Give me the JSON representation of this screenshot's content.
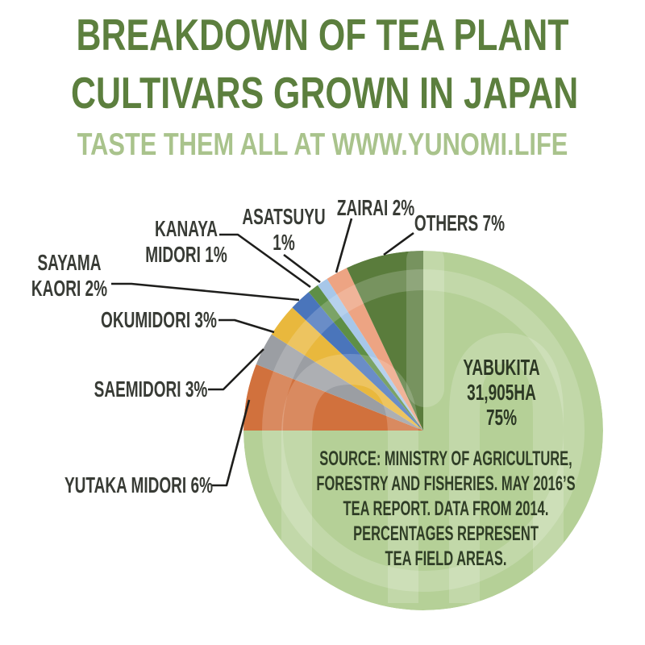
{
  "header": {
    "title_line1": "BREAKDOWN OF TEA PLANT",
    "title_line2": "CULTIVARS GROWN IN JAPAN",
    "subtitle": "TASTE THEM ALL AT WWW.YUNOMI.LIFE",
    "title_color": "#5c7f3e",
    "subtitle_color": "#a9c38c"
  },
  "chart_data": {
    "type": "pie",
    "title": "Breakdown of tea plant cultivars grown in Japan",
    "unit": "percent of tea field area",
    "start_angle_deg": 0,
    "direction": "clockwise",
    "legend_position": "callout-labels",
    "slices": [
      {
        "label": "YABUKITA",
        "value": 75,
        "color": "#b5d097",
        "note": "31,905HA"
      },
      {
        "label": "YUTAKA MIDORI",
        "value": 6,
        "color": "#d1713d"
      },
      {
        "label": "SAEMIDORI",
        "value": 3,
        "color": "#9b9ea3"
      },
      {
        "label": "OKUMIDORI",
        "value": 3,
        "color": "#e9b83d"
      },
      {
        "label": "SAYAMA KAORI",
        "value": 2,
        "color": "#4a75bb"
      },
      {
        "label": "KANAYA MIDORI",
        "value": 1,
        "color": "#5e8f46"
      },
      {
        "label": "ASATSUYU",
        "value": 1,
        "color": "#a7c7e9"
      },
      {
        "label": "ZAIRAI",
        "value": 2,
        "color": "#eda483"
      },
      {
        "label": "OTHERS",
        "value": 7,
        "color": "#5a7c3c"
      }
    ]
  },
  "callouts": {
    "sayama_kaori": {
      "lines": [
        "SAYAMA",
        "KAORI 2%"
      ]
    },
    "kanaya_midori": {
      "lines": [
        "KANAYA",
        "MIDORI 1%"
      ]
    },
    "asatsuyu": {
      "lines": [
        "ASATSUYU",
        "1%"
      ]
    },
    "zairai": {
      "lines": [
        "ZAIRAI 2%"
      ]
    },
    "others": {
      "lines": [
        "OTHERS 7%"
      ]
    },
    "okumidori": {
      "lines": [
        "OKUMIDORI 3%"
      ]
    },
    "saemidori": {
      "lines": [
        "SAEMIDORI 3%"
      ]
    },
    "yutaka_midori": {
      "lines": [
        "YUTAKA MIDORI 6%"
      ]
    }
  },
  "center_annotation": {
    "lines": [
      "YABUKITA",
      "31,905HA",
      "75%"
    ]
  },
  "source": {
    "lines": [
      "SOURCE: MINISTRY OF AGRICULTURE,",
      "FORESTRY AND FISHERIES. MAY 2016’S",
      "TEA REPORT. DATA FROM 2014.",
      "PERCENTAGES REPRESENT",
      "TEA FIELD AREAS."
    ]
  },
  "watermark": {
    "name": "yunomi-logo-watermark",
    "color": "#ffffff",
    "opacity": 0.18
  },
  "leader_line_color": "#1e1e1c"
}
